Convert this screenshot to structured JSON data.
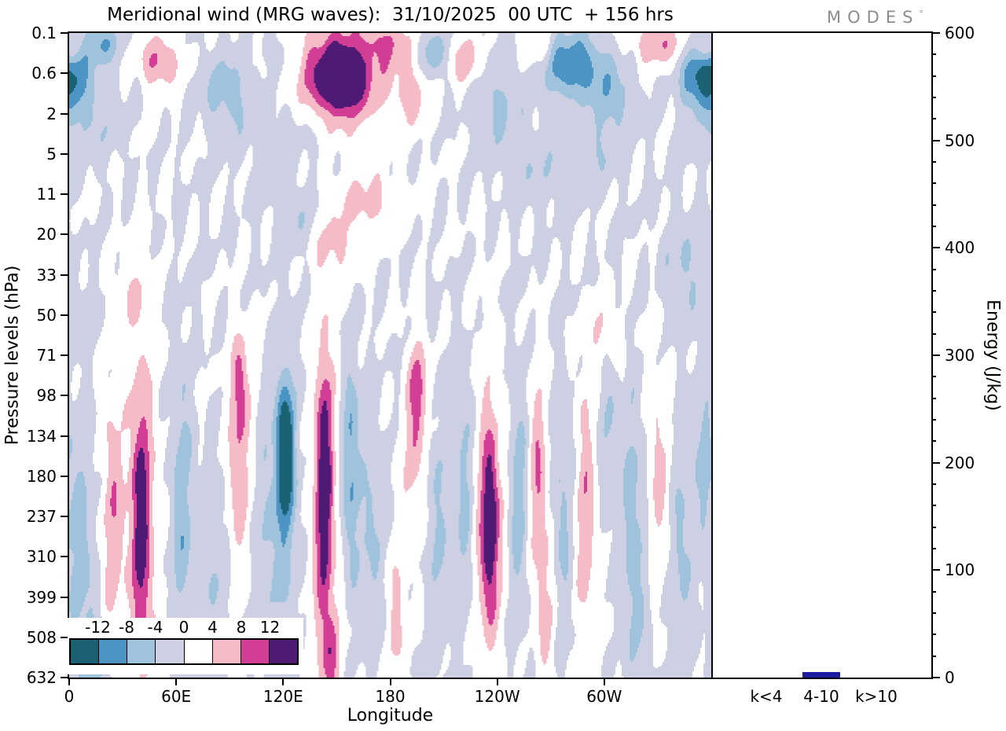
{
  "title": "Meridional wind (MRG waves):  31/10/2025  00 UTC  + 156 hrs",
  "logo": {
    "text": "MODES",
    "degree": "°"
  },
  "chart_data": [
    {
      "type": "heatmap",
      "subtype": "filled-contour",
      "title": "Meridional wind (MRG waves):  31/10/2025  00 UTC  + 156 hrs",
      "xlabel": "Longitude",
      "ylabel": "Pressure levels (hPa)",
      "x_range": [
        0,
        360
      ],
      "x_tick_labels": [
        "0",
        "60E",
        "120E",
        "180",
        "120W",
        "60W"
      ],
      "x_tick_lons": [
        0,
        60,
        120,
        180,
        240,
        300
      ],
      "y_tick_labels": [
        "0.1",
        "0.6",
        "2",
        "5",
        "11",
        "20",
        "33",
        "50",
        "71",
        "98",
        "134",
        "180",
        "237",
        "310",
        "399",
        "508",
        "632"
      ],
      "y_axis_note": "pressure levels equally spaced by level index, top 0.1 hPa to bottom 632 hPa",
      "contour_levels": [
        -12,
        -8,
        -4,
        0,
        4,
        8,
        12
      ],
      "band_colors": [
        "#1a6174",
        "#4b94c4",
        "#9fc3dd",
        "#cdd0e3",
        "#ffffff",
        "#f5bcc8",
        "#d23e96",
        "#4f1a73"
      ],
      "colorbar_labels": [
        "-12",
        "-8",
        "-4",
        "0",
        "4",
        "8",
        "12"
      ],
      "features_format": [
        "lon_deg",
        "level_index",
        "amplitude",
        "sigma_lon_deg",
        "sigma_level_index"
      ],
      "features": [
        [
          152,
          1.1,
          17,
          13,
          0.75
        ],
        [
          150,
          1.0,
          9,
          30,
          1.5
        ],
        [
          178,
          0.2,
          6,
          12,
          0.6
        ],
        [
          2,
          1.0,
          -10,
          10,
          0.8
        ],
        [
          18,
          0.25,
          -8,
          9,
          0.5
        ],
        [
          50,
          0.7,
          9,
          11,
          0.6
        ],
        [
          10,
          2.2,
          -4,
          18,
          0.9
        ],
        [
          88,
          1.4,
          -6,
          13,
          0.9
        ],
        [
          118,
          0.5,
          -4,
          10,
          0.6
        ],
        [
          205,
          0.5,
          -7,
          8,
          0.6
        ],
        [
          192,
          1.5,
          5,
          10,
          0.8
        ],
        [
          222,
          0.7,
          7,
          9,
          0.6
        ],
        [
          240,
          1.8,
          -5,
          14,
          1.0
        ],
        [
          283,
          0.8,
          -12,
          16,
          0.8
        ],
        [
          305,
          1.6,
          -6,
          12,
          0.9
        ],
        [
          330,
          0.25,
          8,
          14,
          0.5
        ],
        [
          352,
          1.1,
          -10,
          9,
          0.8
        ],
        [
          358,
          0.4,
          6,
          6,
          0.4
        ],
        [
          262,
          0.3,
          5,
          8,
          0.5
        ],
        [
          120,
          2.3,
          -3.5,
          25,
          1.0
        ],
        [
          168,
          4.2,
          5.5,
          20,
          0.7
        ],
        [
          148,
          5.3,
          5,
          12,
          0.7
        ],
        [
          127,
          4.6,
          -3.5,
          12,
          0.8
        ],
        [
          262,
          3.4,
          -3.5,
          16,
          0.9
        ],
        [
          298,
          3.0,
          -3.2,
          12,
          0.8
        ],
        [
          345,
          5.8,
          -4.5,
          12,
          1.2
        ],
        [
          300,
          7.4,
          4.5,
          8,
          0.8
        ],
        [
          35,
          6.5,
          4,
          8,
          0.7
        ],
        [
          4,
          7,
          -3.5,
          8,
          0.8
        ],
        [
          6,
          13,
          -6,
          7,
          3
        ],
        [
          14,
          15.8,
          -7,
          7,
          1.2
        ],
        [
          24,
          12,
          7,
          6,
          3
        ],
        [
          40,
          12.3,
          11,
          5,
          3.2
        ],
        [
          40,
          12,
          5,
          10,
          4.5
        ],
        [
          63,
          12,
          -7,
          6,
          3.5
        ],
        [
          80,
          13.5,
          -4,
          7,
          2.5
        ],
        [
          95,
          10.5,
          8,
          6,
          2.5
        ],
        [
          96,
          8.6,
          6,
          5,
          1.0
        ],
        [
          110,
          12.5,
          -4,
          6,
          2.5
        ],
        [
          121,
          10.4,
          -15,
          4.5,
          1.5
        ],
        [
          121,
          11.5,
          -7,
          7,
          3.5
        ],
        [
          143,
          11,
          12,
          4.5,
          3.0
        ],
        [
          143,
          12.5,
          6,
          8,
          4.5
        ],
        [
          147,
          15.6,
          7,
          5,
          1.2
        ],
        [
          158,
          10.8,
          -9,
          5,
          2.6
        ],
        [
          170,
          12.5,
          -5,
          6,
          2.5
        ],
        [
          184,
          14.5,
          5,
          6,
          2
        ],
        [
          196,
          8.8,
          9,
          5,
          1.1
        ],
        [
          193,
          10.5,
          6,
          6,
          2
        ],
        [
          207,
          12.5,
          -4.5,
          6,
          3
        ],
        [
          222,
          11.5,
          -6,
          5,
          3
        ],
        [
          236,
          12.3,
          13,
          4.5,
          2.0
        ],
        [
          235,
          12,
          6,
          9,
          4
        ],
        [
          252,
          11.5,
          -6.5,
          5,
          3
        ],
        [
          263,
          11,
          8,
          5,
          2.5
        ],
        [
          268,
          14.5,
          5,
          6,
          2
        ],
        [
          277,
          12,
          -5,
          6,
          3
        ],
        [
          290,
          12,
          7,
          6,
          3.5
        ],
        [
          303,
          10,
          -4,
          6,
          2
        ],
        [
          316,
          11.5,
          -6,
          5,
          2.5
        ],
        [
          318,
          14.5,
          -4,
          7,
          2
        ],
        [
          331,
          11,
          6,
          5,
          2.5
        ],
        [
          344,
          13,
          -5,
          6,
          3
        ],
        [
          356,
          10.5,
          -5,
          5,
          2
        ]
      ]
    },
    {
      "type": "bar",
      "categories": [
        "k<4",
        "4-10",
        "k>10"
      ],
      "values": [
        0,
        5,
        0
      ],
      "ylabel": "Energy (J/kg)",
      "ylim": [
        0,
        600
      ],
      "y_tick_labels": [
        "0",
        "100",
        "200",
        "300",
        "400",
        "500",
        "600"
      ],
      "y_tick_values": [
        0,
        100,
        200,
        300,
        400,
        500,
        600
      ],
      "bar_color": "#1b1d9c"
    }
  ]
}
